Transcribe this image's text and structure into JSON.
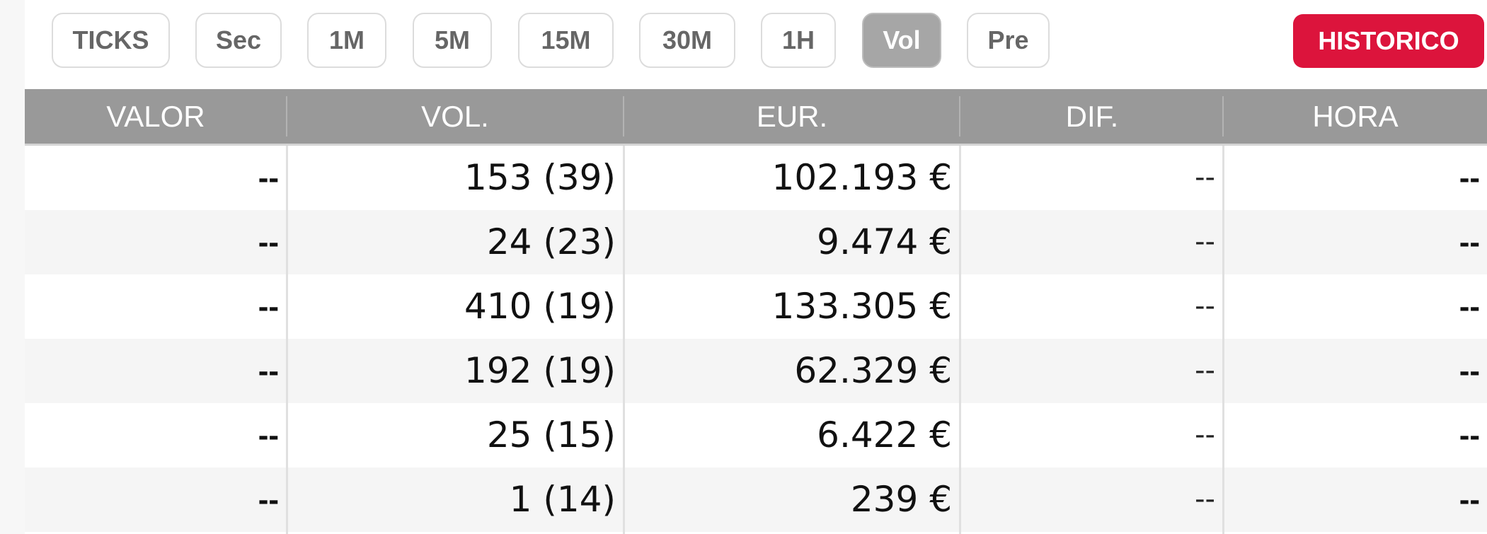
{
  "toolbar": {
    "timeframes": [
      {
        "label": "TICKS",
        "active": false
      },
      {
        "label": "Sec",
        "active": false
      },
      {
        "label": "1M",
        "active": false
      },
      {
        "label": "5M",
        "active": false
      },
      {
        "label": "15M",
        "active": false
      },
      {
        "label": "30M",
        "active": false
      },
      {
        "label": "1H",
        "active": false
      },
      {
        "label": "Vol",
        "active": true
      },
      {
        "label": "Pre",
        "active": false
      }
    ],
    "historico_label": "HISTORICO"
  },
  "colors": {
    "accent": "#dc143c",
    "header_bg": "#999999",
    "active_button_bg": "#a6a6a6",
    "row_alt_bg": "#f5f5f5"
  },
  "table": {
    "columns": [
      "VALOR",
      "VOL.",
      "EUR.",
      "DIF.",
      "HORA"
    ],
    "rows": [
      {
        "valor": "--",
        "vol": "153 (39)",
        "eur": "102.193 €",
        "dif": "--",
        "hora": "--"
      },
      {
        "valor": "--",
        "vol": "24 (23)",
        "eur": "9.474 €",
        "dif": "--",
        "hora": "--"
      },
      {
        "valor": "--",
        "vol": "410 (19)",
        "eur": "133.305 €",
        "dif": "--",
        "hora": "--"
      },
      {
        "valor": "--",
        "vol": "192 (19)",
        "eur": "62.329 €",
        "dif": "--",
        "hora": "--"
      },
      {
        "valor": "--",
        "vol": "25 (15)",
        "eur": "6.422 €",
        "dif": "--",
        "hora": "--"
      },
      {
        "valor": "--",
        "vol": "1 (14)",
        "eur": "239 €",
        "dif": "--",
        "hora": "--"
      }
    ]
  }
}
